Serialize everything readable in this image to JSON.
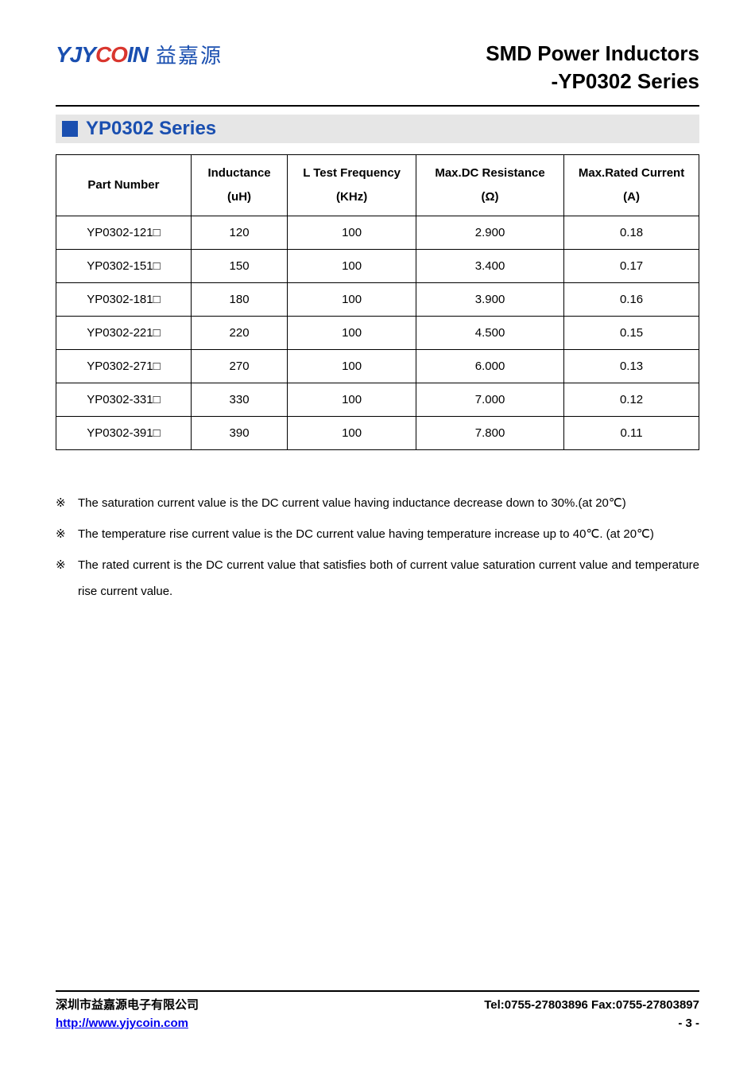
{
  "logo": {
    "en_parts": [
      "YJY",
      "C",
      "O",
      "IN"
    ],
    "en_colors": [
      "#1a4fb0",
      "#d9362e",
      "#1a4fb0",
      "#1a4fb0"
    ],
    "cn": "益嘉源"
  },
  "header": {
    "title_line1": "SMD Power Inductors",
    "title_line2": "-YP0302 Series"
  },
  "section": {
    "title": "YP0302 Series"
  },
  "table": {
    "columns": [
      {
        "line1": "Part Number",
        "line2": ""
      },
      {
        "line1": "Inductance",
        "line2": "(uH)"
      },
      {
        "line1": "L Test Frequency",
        "line2": "(KHz)"
      },
      {
        "line1": "Max.DC Resistance",
        "line2": "(Ω)"
      },
      {
        "line1": "Max.Rated Current",
        "line2": "(A)"
      }
    ],
    "rows": [
      [
        "YP0302-121□",
        "120",
        "100",
        "2.900",
        "0.18"
      ],
      [
        "YP0302-151□",
        "150",
        "100",
        "3.400",
        "0.17"
      ],
      [
        "YP0302-181□",
        "180",
        "100",
        "3.900",
        "0.16"
      ],
      [
        "YP0302-221□",
        "220",
        "100",
        "4.500",
        "0.15"
      ],
      [
        "YP0302-271□",
        "270",
        "100",
        "6.000",
        "0.13"
      ],
      [
        "YP0302-331□",
        "330",
        "100",
        "7.000",
        "0.12"
      ],
      [
        "YP0302-391□",
        "390",
        "100",
        "7.800",
        "0.11"
      ]
    ]
  },
  "notes": {
    "mark": "※",
    "items": [
      "The saturation current value is the DC current value having inductance decrease down to 30%.(at 20℃)",
      "The temperature rise current value is the DC current value having temperature increase up to 40℃. (at 20℃)",
      "The rated current is the DC current value that satisfies both of current value saturation current value and temperature rise current value."
    ]
  },
  "footer": {
    "company": "深圳市益嘉源电子有限公司",
    "url": "http://www.yjycoin.com",
    "tel_fax": "Tel:0755-27803896   Fax:0755-27803897",
    "page": "- 3 -"
  }
}
